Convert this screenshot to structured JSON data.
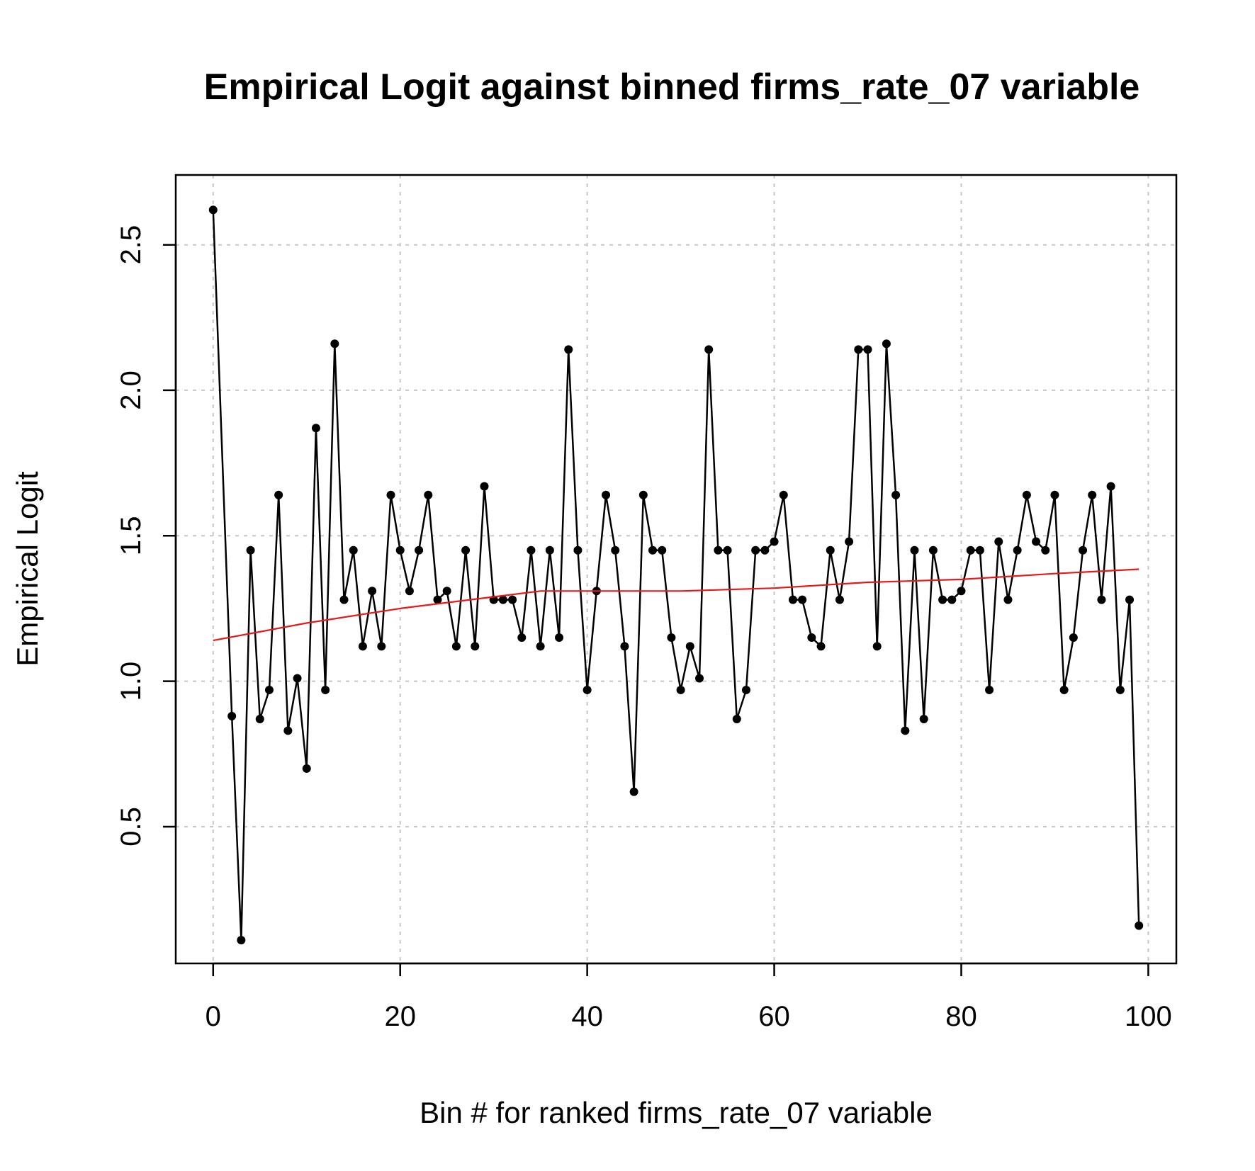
{
  "chart_data": {
    "type": "line",
    "title": "Empirical Logit against binned firms_rate_07 variable",
    "xlabel": "Bin # for ranked firms_rate_07 variable",
    "ylabel": "Empirical Logit",
    "xlim": [
      -4,
      103
    ],
    "ylim": [
      0.03,
      2.74
    ],
    "x_ticks": [
      0,
      20,
      40,
      60,
      80,
      100
    ],
    "x_tick_labels": [
      "0",
      "20",
      "40",
      "60",
      "80",
      "100"
    ],
    "y_ticks": [
      0.5,
      1.0,
      1.5,
      2.0,
      2.5
    ],
    "y_tick_labels": [
      "0.5",
      "1.0",
      "1.5",
      "2.0",
      "2.5"
    ],
    "grid": true,
    "series": [
      {
        "color": "#000000",
        "markers": true,
        "x": [
          0,
          2,
          3,
          4,
          5,
          6,
          7,
          8,
          9,
          10,
          11,
          12,
          13,
          14,
          15,
          16,
          17,
          18,
          19,
          20,
          21,
          22,
          23,
          24,
          25,
          26,
          27,
          28,
          29,
          30,
          31,
          32,
          33,
          34,
          35,
          36,
          37,
          38,
          39,
          40,
          41,
          42,
          43,
          44,
          45,
          46,
          47,
          48,
          49,
          50,
          51,
          52,
          53,
          54,
          55,
          56,
          57,
          58,
          59,
          60,
          61,
          62,
          63,
          64,
          65,
          66,
          67,
          68,
          69,
          70,
          71,
          72,
          73,
          74,
          75,
          76,
          77,
          78,
          79,
          80,
          81,
          82,
          83,
          84,
          85,
          86,
          87,
          88,
          89,
          90,
          91,
          92,
          93,
          94,
          95,
          96,
          97,
          98,
          99
        ],
        "y": [
          2.62,
          0.88,
          0.11,
          1.45,
          0.87,
          0.97,
          1.64,
          0.83,
          1.01,
          0.7,
          1.87,
          0.97,
          2.16,
          1.28,
          1.45,
          1.12,
          1.31,
          1.12,
          1.64,
          1.45,
          1.31,
          1.45,
          1.64,
          1.28,
          1.31,
          1.12,
          1.45,
          1.12,
          1.67,
          1.28,
          1.28,
          1.28,
          1.15,
          1.45,
          1.12,
          1.45,
          1.15,
          2.14,
          1.45,
          0.97,
          1.31,
          1.64,
          1.45,
          1.12,
          0.62,
          1.64,
          1.45,
          1.45,
          1.15,
          0.97,
          1.12,
          1.01,
          2.14,
          1.45,
          1.45,
          0.87,
          0.97,
          1.45,
          1.45,
          1.48,
          1.64,
          1.28,
          1.28,
          1.15,
          1.12,
          1.45,
          1.28,
          1.48,
          2.14,
          2.14,
          1.12,
          2.16,
          1.64,
          0.83,
          1.45,
          0.87,
          1.45,
          1.28,
          1.28,
          1.31,
          1.45,
          1.45,
          0.97,
          1.48,
          1.28,
          1.45,
          1.64,
          1.48,
          1.45,
          1.64,
          0.97,
          1.15,
          1.45,
          1.64,
          1.28,
          1.67,
          0.97,
          1.28,
          0.16
        ]
      },
      {
        "color": "#e41a1c",
        "markers": false,
        "x": [
          0,
          10,
          20,
          30,
          35,
          40,
          50,
          60,
          70,
          80,
          90,
          99
        ],
        "y": [
          1.14,
          1.2,
          1.25,
          1.29,
          1.31,
          1.31,
          1.31,
          1.32,
          1.34,
          1.35,
          1.37,
          1.385
        ]
      }
    ]
  }
}
